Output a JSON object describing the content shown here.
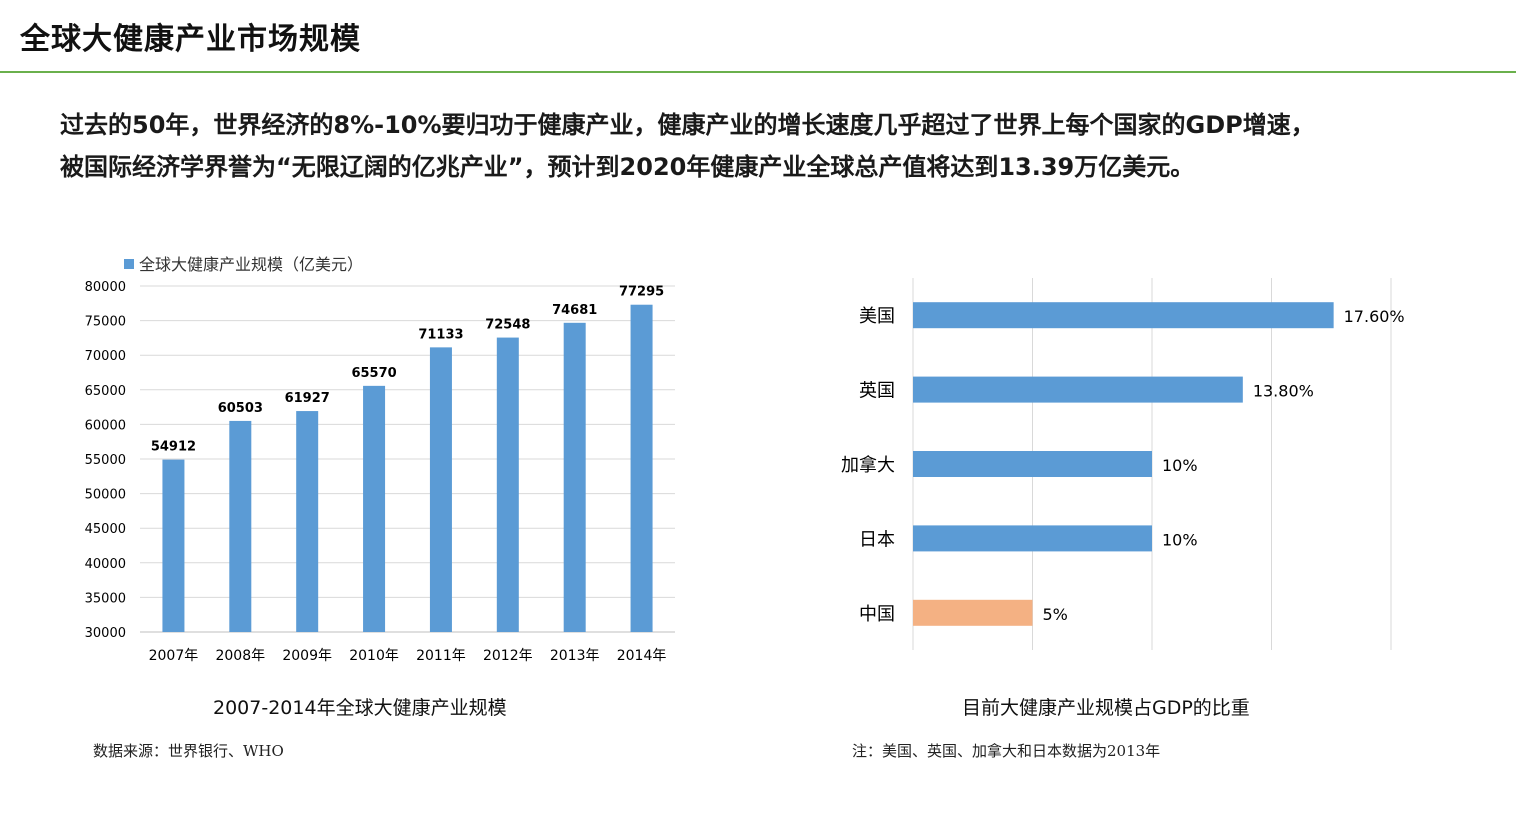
{
  "page": {
    "title": "全球大健康产业市场规模",
    "intro_line1": "过去的50年，世界经济的8%-10%要归功于健康产业，健康产业的增长速度几乎超过了世界上每个国家的GDP增速，",
    "intro_line2": "被国际经济学界誉为“无限辽阔的亿兆产业”，预计到2020年健康产业全球总产值将达到13.39万亿美元。",
    "accent_color": "#6ab04c"
  },
  "left_panel": {
    "caption": "2007-2014年全球大健康产业规模",
    "source": "数据来源：世界银行、WHO"
  },
  "right_panel": {
    "caption": "目前大健康产业规模占GDP的比重",
    "note": "注：美国、英国、加拿大和日本数据为2013年"
  },
  "chart_data": [
    {
      "type": "bar",
      "legend": "全球大健康产业规模（亿美元）",
      "legend_position": "top-left",
      "categories": [
        "2007年",
        "2008年",
        "2009年",
        "2010年",
        "2011年",
        "2012年",
        "2013年",
        "2014年"
      ],
      "values": [
        54912,
        60503,
        61927,
        65570,
        71133,
        72548,
        74681,
        77295
      ],
      "ylim": [
        30000,
        80000
      ],
      "yticks": [
        30000,
        35000,
        40000,
        45000,
        50000,
        55000,
        60000,
        65000,
        70000,
        75000,
        80000
      ],
      "grid": true,
      "bar_color": "#5b9bd5"
    },
    {
      "type": "bar",
      "orientation": "horizontal",
      "categories": [
        "美国",
        "英国",
        "加拿大",
        "日本",
        "中国"
      ],
      "values": [
        17.6,
        13.8,
        10,
        10,
        5
      ],
      "value_labels": [
        "17.60%",
        "13.80%",
        "10%",
        "10%",
        "5%"
      ],
      "xlim": [
        0,
        20
      ],
      "grid": true,
      "colors": [
        "#5b9bd5",
        "#5b9bd5",
        "#5b9bd5",
        "#5b9bd5",
        "#f4b183"
      ]
    }
  ]
}
